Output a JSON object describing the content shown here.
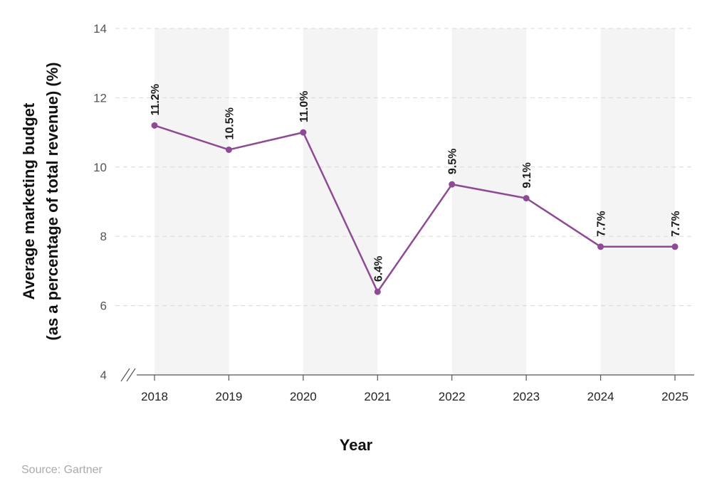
{
  "chart_data": {
    "type": "line",
    "categories": [
      "2018",
      "2019",
      "2020",
      "2021",
      "2022",
      "2023",
      "2024",
      "2025"
    ],
    "values": [
      11.2,
      10.5,
      11.0,
      6.4,
      9.5,
      9.1,
      7.7,
      7.7
    ],
    "data_labels": [
      "11.2%",
      "10.5%",
      "11.0%",
      "6.4%",
      "9.5%",
      "9.1%",
      "7.7%",
      "7.7%"
    ],
    "xlabel": "Year",
    "ylabel_line1": "Average marketing budget",
    "ylabel_line2": "(as a percentage of total revenue) (%)",
    "ylim": [
      4,
      14
    ],
    "yticks": [
      4,
      6,
      8,
      10,
      12,
      14
    ],
    "grid": true,
    "axis_break": true,
    "colors": {
      "line": "#8e4a94",
      "band": "#f4f4f4",
      "grid": "#d8d8d8",
      "axis": "#555555"
    }
  },
  "source": "Source: Gartner"
}
